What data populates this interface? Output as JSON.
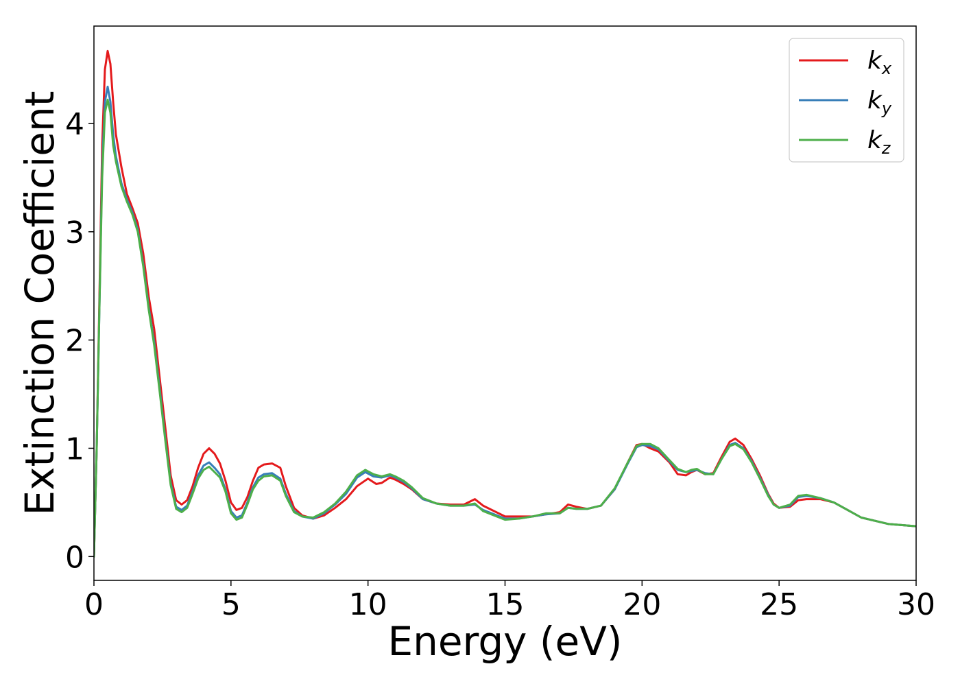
{
  "chart_data": {
    "type": "line",
    "title": "",
    "xlabel": "Energy (eV)",
    "ylabel": "Extinction Coefficient",
    "xlim": [
      0,
      30
    ],
    "ylim": [
      -0.22,
      4.9
    ],
    "xticks": [
      0,
      5,
      10,
      15,
      20,
      25,
      30
    ],
    "yticks": [
      0,
      1,
      2,
      3,
      4
    ],
    "grid": false,
    "legend_position": "top-right",
    "series": [
      {
        "name": "k_x",
        "label_base": "k",
        "label_sub": "x",
        "color": "#e41a1c",
        "points": [
          [
            0,
            0
          ],
          [
            0.1,
            1.0
          ],
          [
            0.2,
            2.4
          ],
          [
            0.3,
            3.8
          ],
          [
            0.4,
            4.5
          ],
          [
            0.5,
            4.67
          ],
          [
            0.6,
            4.55
          ],
          [
            0.7,
            4.2
          ],
          [
            0.8,
            3.9
          ],
          [
            1.0,
            3.6
          ],
          [
            1.2,
            3.35
          ],
          [
            1.4,
            3.22
          ],
          [
            1.6,
            3.08
          ],
          [
            1.8,
            2.8
          ],
          [
            2.0,
            2.4
          ],
          [
            2.2,
            2.1
          ],
          [
            2.4,
            1.65
          ],
          [
            2.6,
            1.2
          ],
          [
            2.8,
            0.75
          ],
          [
            3.0,
            0.52
          ],
          [
            3.2,
            0.48
          ],
          [
            3.4,
            0.52
          ],
          [
            3.6,
            0.65
          ],
          [
            3.8,
            0.82
          ],
          [
            4.0,
            0.95
          ],
          [
            4.2,
            1.0
          ],
          [
            4.4,
            0.95
          ],
          [
            4.6,
            0.86
          ],
          [
            4.8,
            0.7
          ],
          [
            5.0,
            0.5
          ],
          [
            5.2,
            0.43
          ],
          [
            5.4,
            0.45
          ],
          [
            5.6,
            0.55
          ],
          [
            5.8,
            0.7
          ],
          [
            6.0,
            0.82
          ],
          [
            6.2,
            0.85
          ],
          [
            6.5,
            0.86
          ],
          [
            6.8,
            0.82
          ],
          [
            7.0,
            0.65
          ],
          [
            7.3,
            0.45
          ],
          [
            7.6,
            0.38
          ],
          [
            8.0,
            0.35
          ],
          [
            8.4,
            0.38
          ],
          [
            8.8,
            0.45
          ],
          [
            9.2,
            0.53
          ],
          [
            9.6,
            0.65
          ],
          [
            10.0,
            0.72
          ],
          [
            10.3,
            0.67
          ],
          [
            10.5,
            0.68
          ],
          [
            10.8,
            0.73
          ],
          [
            11.0,
            0.71
          ],
          [
            11.3,
            0.67
          ],
          [
            11.6,
            0.62
          ],
          [
            12.0,
            0.53
          ],
          [
            12.5,
            0.49
          ],
          [
            13.0,
            0.48
          ],
          [
            13.5,
            0.48
          ],
          [
            13.9,
            0.53
          ],
          [
            14.2,
            0.47
          ],
          [
            14.6,
            0.42
          ],
          [
            15.0,
            0.37
          ],
          [
            15.5,
            0.37
          ],
          [
            16.0,
            0.37
          ],
          [
            16.5,
            0.39
          ],
          [
            17.0,
            0.41
          ],
          [
            17.3,
            0.48
          ],
          [
            17.6,
            0.46
          ],
          [
            18.0,
            0.44
          ],
          [
            18.5,
            0.47
          ],
          [
            19.0,
            0.62
          ],
          [
            19.5,
            0.88
          ],
          [
            19.8,
            1.03
          ],
          [
            20.0,
            1.04
          ],
          [
            20.3,
            1.0
          ],
          [
            20.6,
            0.97
          ],
          [
            21.0,
            0.87
          ],
          [
            21.3,
            0.76
          ],
          [
            21.6,
            0.75
          ],
          [
            21.8,
            0.78
          ],
          [
            22.0,
            0.8
          ],
          [
            22.3,
            0.76
          ],
          [
            22.6,
            0.77
          ],
          [
            22.9,
            0.92
          ],
          [
            23.2,
            1.06
          ],
          [
            23.4,
            1.09
          ],
          [
            23.7,
            1.03
          ],
          [
            24.0,
            0.9
          ],
          [
            24.3,
            0.75
          ],
          [
            24.6,
            0.58
          ],
          [
            24.8,
            0.49
          ],
          [
            25.0,
            0.45
          ],
          [
            25.4,
            0.46
          ],
          [
            25.7,
            0.52
          ],
          [
            26.0,
            0.53
          ],
          [
            26.5,
            0.53
          ],
          [
            27.0,
            0.5
          ],
          [
            27.5,
            0.43
          ],
          [
            28.0,
            0.36
          ],
          [
            28.5,
            0.33
          ],
          [
            29.0,
            0.3
          ],
          [
            29.5,
            0.29
          ],
          [
            30.0,
            0.28
          ]
        ]
      },
      {
        "name": "k_y",
        "label_base": "k",
        "label_sub": "y",
        "color": "#377eb8",
        "points": [
          [
            0,
            0
          ],
          [
            0.1,
            1.0
          ],
          [
            0.2,
            2.3
          ],
          [
            0.3,
            3.6
          ],
          [
            0.4,
            4.2
          ],
          [
            0.5,
            4.34
          ],
          [
            0.6,
            4.2
          ],
          [
            0.7,
            3.9
          ],
          [
            0.8,
            3.7
          ],
          [
            1.0,
            3.45
          ],
          [
            1.2,
            3.3
          ],
          [
            1.4,
            3.18
          ],
          [
            1.6,
            3.02
          ],
          [
            1.8,
            2.7
          ],
          [
            2.0,
            2.3
          ],
          [
            2.2,
            1.98
          ],
          [
            2.4,
            1.55
          ],
          [
            2.6,
            1.1
          ],
          [
            2.8,
            0.68
          ],
          [
            3.0,
            0.46
          ],
          [
            3.2,
            0.43
          ],
          [
            3.4,
            0.47
          ],
          [
            3.6,
            0.6
          ],
          [
            3.8,
            0.75
          ],
          [
            4.0,
            0.84
          ],
          [
            4.2,
            0.87
          ],
          [
            4.4,
            0.82
          ],
          [
            4.6,
            0.76
          ],
          [
            4.8,
            0.62
          ],
          [
            5.0,
            0.42
          ],
          [
            5.2,
            0.36
          ],
          [
            5.4,
            0.38
          ],
          [
            5.6,
            0.5
          ],
          [
            5.8,
            0.64
          ],
          [
            6.0,
            0.73
          ],
          [
            6.2,
            0.76
          ],
          [
            6.5,
            0.77
          ],
          [
            6.8,
            0.72
          ],
          [
            7.0,
            0.58
          ],
          [
            7.3,
            0.42
          ],
          [
            7.6,
            0.37
          ],
          [
            8.0,
            0.35
          ],
          [
            8.4,
            0.4
          ],
          [
            8.8,
            0.48
          ],
          [
            9.2,
            0.58
          ],
          [
            9.6,
            0.73
          ],
          [
            9.9,
            0.78
          ],
          [
            10.2,
            0.74
          ],
          [
            10.5,
            0.73
          ],
          [
            10.8,
            0.75
          ],
          [
            11.0,
            0.73
          ],
          [
            11.3,
            0.69
          ],
          [
            11.6,
            0.63
          ],
          [
            12.0,
            0.53
          ],
          [
            12.5,
            0.49
          ],
          [
            13.0,
            0.47
          ],
          [
            13.5,
            0.47
          ],
          [
            13.9,
            0.48
          ],
          [
            14.2,
            0.43
          ],
          [
            14.6,
            0.39
          ],
          [
            15.0,
            0.35
          ],
          [
            15.5,
            0.35
          ],
          [
            16.0,
            0.37
          ],
          [
            16.5,
            0.39
          ],
          [
            17.0,
            0.4
          ],
          [
            17.3,
            0.45
          ],
          [
            17.6,
            0.44
          ],
          [
            18.0,
            0.44
          ],
          [
            18.5,
            0.47
          ],
          [
            19.0,
            0.62
          ],
          [
            19.5,
            0.87
          ],
          [
            19.8,
            1.01
          ],
          [
            20.0,
            1.03
          ],
          [
            20.3,
            1.02
          ],
          [
            20.6,
            0.99
          ],
          [
            21.0,
            0.88
          ],
          [
            21.3,
            0.8
          ],
          [
            21.6,
            0.78
          ],
          [
            21.8,
            0.79
          ],
          [
            22.0,
            0.8
          ],
          [
            22.3,
            0.77
          ],
          [
            22.6,
            0.76
          ],
          [
            22.9,
            0.9
          ],
          [
            23.2,
            1.03
          ],
          [
            23.4,
            1.05
          ],
          [
            23.7,
            1.0
          ],
          [
            24.0,
            0.88
          ],
          [
            24.3,
            0.73
          ],
          [
            24.6,
            0.57
          ],
          [
            24.8,
            0.48
          ],
          [
            25.0,
            0.45
          ],
          [
            25.4,
            0.47
          ],
          [
            25.7,
            0.55
          ],
          [
            26.0,
            0.56
          ],
          [
            26.5,
            0.54
          ],
          [
            27.0,
            0.5
          ],
          [
            27.5,
            0.43
          ],
          [
            28.0,
            0.36
          ],
          [
            28.5,
            0.33
          ],
          [
            29.0,
            0.3
          ],
          [
            29.5,
            0.29
          ],
          [
            30.0,
            0.28
          ]
        ]
      },
      {
        "name": "k_z",
        "label_base": "k",
        "label_sub": "z",
        "color": "#4daf4a",
        "points": [
          [
            0,
            0
          ],
          [
            0.1,
            1.0
          ],
          [
            0.2,
            2.3
          ],
          [
            0.3,
            3.5
          ],
          [
            0.4,
            4.1
          ],
          [
            0.5,
            4.22
          ],
          [
            0.6,
            4.1
          ],
          [
            0.7,
            3.8
          ],
          [
            0.8,
            3.65
          ],
          [
            1.0,
            3.42
          ],
          [
            1.2,
            3.28
          ],
          [
            1.4,
            3.16
          ],
          [
            1.6,
            3.0
          ],
          [
            1.8,
            2.68
          ],
          [
            2.0,
            2.28
          ],
          [
            2.2,
            1.95
          ],
          [
            2.4,
            1.52
          ],
          [
            2.6,
            1.08
          ],
          [
            2.8,
            0.66
          ],
          [
            3.0,
            0.44
          ],
          [
            3.2,
            0.41
          ],
          [
            3.4,
            0.45
          ],
          [
            3.6,
            0.58
          ],
          [
            3.8,
            0.72
          ],
          [
            4.0,
            0.8
          ],
          [
            4.2,
            0.83
          ],
          [
            4.4,
            0.78
          ],
          [
            4.6,
            0.73
          ],
          [
            4.8,
            0.6
          ],
          [
            5.0,
            0.4
          ],
          [
            5.2,
            0.34
          ],
          [
            5.4,
            0.36
          ],
          [
            5.6,
            0.48
          ],
          [
            5.8,
            0.62
          ],
          [
            6.0,
            0.7
          ],
          [
            6.2,
            0.74
          ],
          [
            6.5,
            0.75
          ],
          [
            6.8,
            0.7
          ],
          [
            7.0,
            0.56
          ],
          [
            7.3,
            0.41
          ],
          [
            7.6,
            0.37
          ],
          [
            8.0,
            0.36
          ],
          [
            8.4,
            0.41
          ],
          [
            8.8,
            0.49
          ],
          [
            9.2,
            0.6
          ],
          [
            9.6,
            0.75
          ],
          [
            9.9,
            0.8
          ],
          [
            10.2,
            0.76
          ],
          [
            10.5,
            0.74
          ],
          [
            10.8,
            0.76
          ],
          [
            11.0,
            0.74
          ],
          [
            11.3,
            0.7
          ],
          [
            11.6,
            0.64
          ],
          [
            12.0,
            0.54
          ],
          [
            12.5,
            0.49
          ],
          [
            13.0,
            0.47
          ],
          [
            13.5,
            0.47
          ],
          [
            13.9,
            0.49
          ],
          [
            14.2,
            0.42
          ],
          [
            14.6,
            0.38
          ],
          [
            15.0,
            0.34
          ],
          [
            15.5,
            0.35
          ],
          [
            16.0,
            0.37
          ],
          [
            16.5,
            0.4
          ],
          [
            17.0,
            0.4
          ],
          [
            17.3,
            0.45
          ],
          [
            17.6,
            0.44
          ],
          [
            18.0,
            0.44
          ],
          [
            18.5,
            0.47
          ],
          [
            19.0,
            0.63
          ],
          [
            19.5,
            0.88
          ],
          [
            19.8,
            1.02
          ],
          [
            20.0,
            1.04
          ],
          [
            20.3,
            1.04
          ],
          [
            20.6,
            1.0
          ],
          [
            21.0,
            0.89
          ],
          [
            21.3,
            0.81
          ],
          [
            21.6,
            0.78
          ],
          [
            21.8,
            0.8
          ],
          [
            22.0,
            0.81
          ],
          [
            22.3,
            0.76
          ],
          [
            22.6,
            0.76
          ],
          [
            22.9,
            0.9
          ],
          [
            23.2,
            1.02
          ],
          [
            23.4,
            1.04
          ],
          [
            23.7,
            0.99
          ],
          [
            24.0,
            0.87
          ],
          [
            24.3,
            0.72
          ],
          [
            24.6,
            0.56
          ],
          [
            24.8,
            0.48
          ],
          [
            25.0,
            0.45
          ],
          [
            25.4,
            0.48
          ],
          [
            25.7,
            0.56
          ],
          [
            26.0,
            0.57
          ],
          [
            26.5,
            0.54
          ],
          [
            27.0,
            0.5
          ],
          [
            27.5,
            0.43
          ],
          [
            28.0,
            0.36
          ],
          [
            28.5,
            0.33
          ],
          [
            29.0,
            0.3
          ],
          [
            29.5,
            0.29
          ],
          [
            30.0,
            0.28
          ]
        ]
      }
    ]
  }
}
